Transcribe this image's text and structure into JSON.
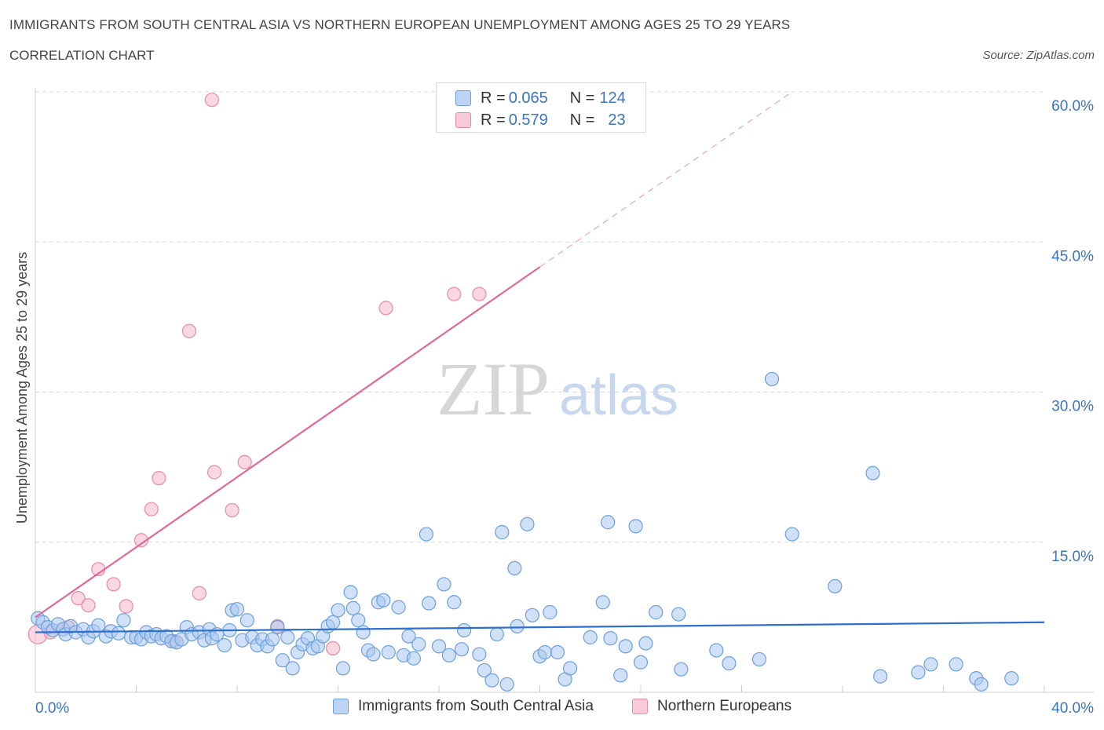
{
  "header": {
    "title": "IMMIGRANTS FROM SOUTH CENTRAL ASIA VS NORTHERN EUROPEAN UNEMPLOYMENT AMONG AGES 25 TO 29 YEARS",
    "subtitle": "CORRELATION CHART",
    "source": "Source: ZipAtlas.com"
  },
  "watermark": {
    "zip": "ZIP",
    "atlas": "atlas"
  },
  "colors": {
    "blue_fill": "#a9c8f0",
    "blue_stroke": "#6d9fdc",
    "blue_line": "#2f6fcb",
    "pink_fill": "#f6b8cb",
    "pink_stroke": "#e98aa8",
    "pink_line": "#e0689a",
    "tick_label": "#3a74c4",
    "grid": "#d9d9d9"
  },
  "legend": {
    "rows": [
      {
        "r_label": "R = ",
        "r_value": "0.065",
        "n_label": "N = ",
        "n_value": "124"
      },
      {
        "r_label": "R = ",
        "r_value": "0.579",
        "n_label": "N = ",
        "n_value": "23"
      }
    ]
  },
  "chart_data": {
    "type": "scatter",
    "title": "IMMIGRANTS FROM SOUTH CENTRAL ASIA VS NORTHERN EUROPEAN UNEMPLOYMENT AMONG AGES 25 TO 29 YEARS",
    "xlabel": "",
    "ylabel": "Unemployment Among Ages 25 to 29 years",
    "xlim": [
      0,
      40
    ],
    "ylim": [
      0,
      60
    ],
    "x_tick_labels": [
      "0.0%",
      "40.0%"
    ],
    "y_ticks": [
      15,
      30,
      45,
      60
    ],
    "y_tick_labels": [
      "15.0%",
      "30.0%",
      "45.0%",
      "60.0%"
    ],
    "grid": "horizontal dashed",
    "legend_position": "top-center and bottom",
    "series": [
      {
        "name": "Immigrants from South Central Asia",
        "color": "#a9c8f0",
        "trend": {
          "x0": 0,
          "y0": 6.0,
          "x1": 40,
          "y1": 7.0
        },
        "points": [
          [
            0.1,
            7.4
          ],
          [
            0.3,
            7.0
          ],
          [
            0.5,
            6.5
          ],
          [
            0.7,
            6.2
          ],
          [
            0.9,
            6.8
          ],
          [
            1.1,
            6.3
          ],
          [
            1.2,
            5.8
          ],
          [
            1.4,
            6.6
          ],
          [
            1.6,
            6.0
          ],
          [
            1.9,
            6.3
          ],
          [
            2.1,
            5.5
          ],
          [
            2.3,
            6.1
          ],
          [
            2.5,
            6.7
          ],
          [
            2.8,
            5.6
          ],
          [
            3.0,
            6.1
          ],
          [
            3.3,
            5.9
          ],
          [
            3.5,
            7.2
          ],
          [
            3.8,
            5.5
          ],
          [
            4.0,
            5.5
          ],
          [
            4.2,
            5.3
          ],
          [
            4.4,
            6.0
          ],
          [
            4.6,
            5.6
          ],
          [
            4.8,
            5.8
          ],
          [
            5.0,
            5.4
          ],
          [
            5.2,
            5.6
          ],
          [
            5.4,
            5.1
          ],
          [
            5.6,
            5.0
          ],
          [
            5.8,
            5.3
          ],
          [
            6.0,
            6.5
          ],
          [
            6.2,
            5.8
          ],
          [
            6.5,
            6.0
          ],
          [
            6.7,
            5.2
          ],
          [
            6.9,
            6.3
          ],
          [
            7.0,
            5.4
          ],
          [
            7.2,
            5.8
          ],
          [
            7.5,
            4.7
          ],
          [
            7.7,
            6.2
          ],
          [
            7.8,
            8.2
          ],
          [
            8.0,
            8.3
          ],
          [
            8.2,
            5.2
          ],
          [
            8.4,
            7.2
          ],
          [
            8.6,
            5.5
          ],
          [
            8.8,
            4.7
          ],
          [
            9.0,
            5.3
          ],
          [
            9.2,
            4.6
          ],
          [
            9.4,
            5.3
          ],
          [
            9.6,
            6.5
          ],
          [
            9.8,
            3.2
          ],
          [
            10.0,
            5.5
          ],
          [
            10.2,
            2.4
          ],
          [
            10.4,
            4.0
          ],
          [
            10.6,
            4.8
          ],
          [
            10.8,
            5.4
          ],
          [
            11.0,
            4.4
          ],
          [
            11.2,
            4.6
          ],
          [
            11.4,
            5.6
          ],
          [
            11.6,
            6.6
          ],
          [
            11.8,
            7.0
          ],
          [
            12.0,
            8.2
          ],
          [
            12.2,
            2.4
          ],
          [
            12.5,
            10.0
          ],
          [
            12.6,
            8.4
          ],
          [
            12.8,
            7.2
          ],
          [
            13.0,
            6.0
          ],
          [
            13.2,
            4.2
          ],
          [
            13.4,
            3.8
          ],
          [
            13.6,
            9.0
          ],
          [
            13.8,
            9.2
          ],
          [
            14.0,
            4.0
          ],
          [
            14.4,
            8.5
          ],
          [
            14.6,
            3.7
          ],
          [
            14.8,
            5.6
          ],
          [
            15.0,
            3.4
          ],
          [
            15.2,
            4.8
          ],
          [
            15.5,
            15.8
          ],
          [
            15.6,
            8.9
          ],
          [
            16.0,
            4.6
          ],
          [
            16.2,
            10.8
          ],
          [
            16.4,
            3.7
          ],
          [
            16.6,
            9.0
          ],
          [
            16.9,
            4.3
          ],
          [
            17.0,
            6.2
          ],
          [
            17.6,
            3.8
          ],
          [
            17.8,
            2.2
          ],
          [
            18.1,
            1.2
          ],
          [
            18.3,
            5.8
          ],
          [
            18.5,
            16.0
          ],
          [
            18.7,
            0.8
          ],
          [
            19.0,
            12.4
          ],
          [
            19.1,
            6.6
          ],
          [
            19.5,
            16.8
          ],
          [
            19.7,
            7.7
          ],
          [
            20.0,
            3.6
          ],
          [
            20.2,
            4.0
          ],
          [
            20.4,
            8.0
          ],
          [
            20.7,
            4.0
          ],
          [
            21.0,
            1.3
          ],
          [
            21.2,
            2.4
          ],
          [
            22.0,
            5.5
          ],
          [
            22.5,
            9.0
          ],
          [
            22.7,
            17.0
          ],
          [
            22.8,
            5.4
          ],
          [
            23.2,
            1.7
          ],
          [
            23.4,
            4.6
          ],
          [
            23.8,
            16.6
          ],
          [
            24.0,
            3.0
          ],
          [
            24.2,
            4.9
          ],
          [
            24.6,
            8.0
          ],
          [
            25.5,
            7.8
          ],
          [
            25.6,
            2.3
          ],
          [
            27.0,
            4.2
          ],
          [
            27.5,
            2.9
          ],
          [
            28.7,
            3.3
          ],
          [
            29.2,
            31.3
          ],
          [
            30.0,
            15.8
          ],
          [
            31.7,
            10.6
          ],
          [
            33.2,
            21.9
          ],
          [
            33.5,
            1.6
          ],
          [
            35.0,
            2.0
          ],
          [
            35.5,
            2.8
          ],
          [
            36.5,
            2.8
          ],
          [
            37.3,
            1.4
          ],
          [
            37.5,
            0.8
          ],
          [
            38.7,
            1.4
          ]
        ]
      },
      {
        "name": "Northern Europeans",
        "color": "#f6b8cb",
        "trend": {
          "x0": 0,
          "y0": 7.5,
          "x1": 20.0,
          "y1": 42.5,
          "dash_to_x": 30,
          "dash_to_y": 60
        },
        "points": [
          [
            0.1,
            5.8
          ],
          [
            0.6,
            6.0
          ],
          [
            1.3,
            6.5
          ],
          [
            1.7,
            9.4
          ],
          [
            2.1,
            8.7
          ],
          [
            2.5,
            12.3
          ],
          [
            3.1,
            10.8
          ],
          [
            3.6,
            8.6
          ],
          [
            4.2,
            15.2
          ],
          [
            4.6,
            18.3
          ],
          [
            4.9,
            21.4
          ],
          [
            5.5,
            5.1
          ],
          [
            6.1,
            36.1
          ],
          [
            6.5,
            9.9
          ],
          [
            7.0,
            59.2
          ],
          [
            7.1,
            22.0
          ],
          [
            7.8,
            18.2
          ],
          [
            8.3,
            23.0
          ],
          [
            9.6,
            6.6
          ],
          [
            11.8,
            4.4
          ],
          [
            13.9,
            38.4
          ],
          [
            16.6,
            39.8
          ],
          [
            17.6,
            39.8
          ]
        ]
      }
    ]
  }
}
